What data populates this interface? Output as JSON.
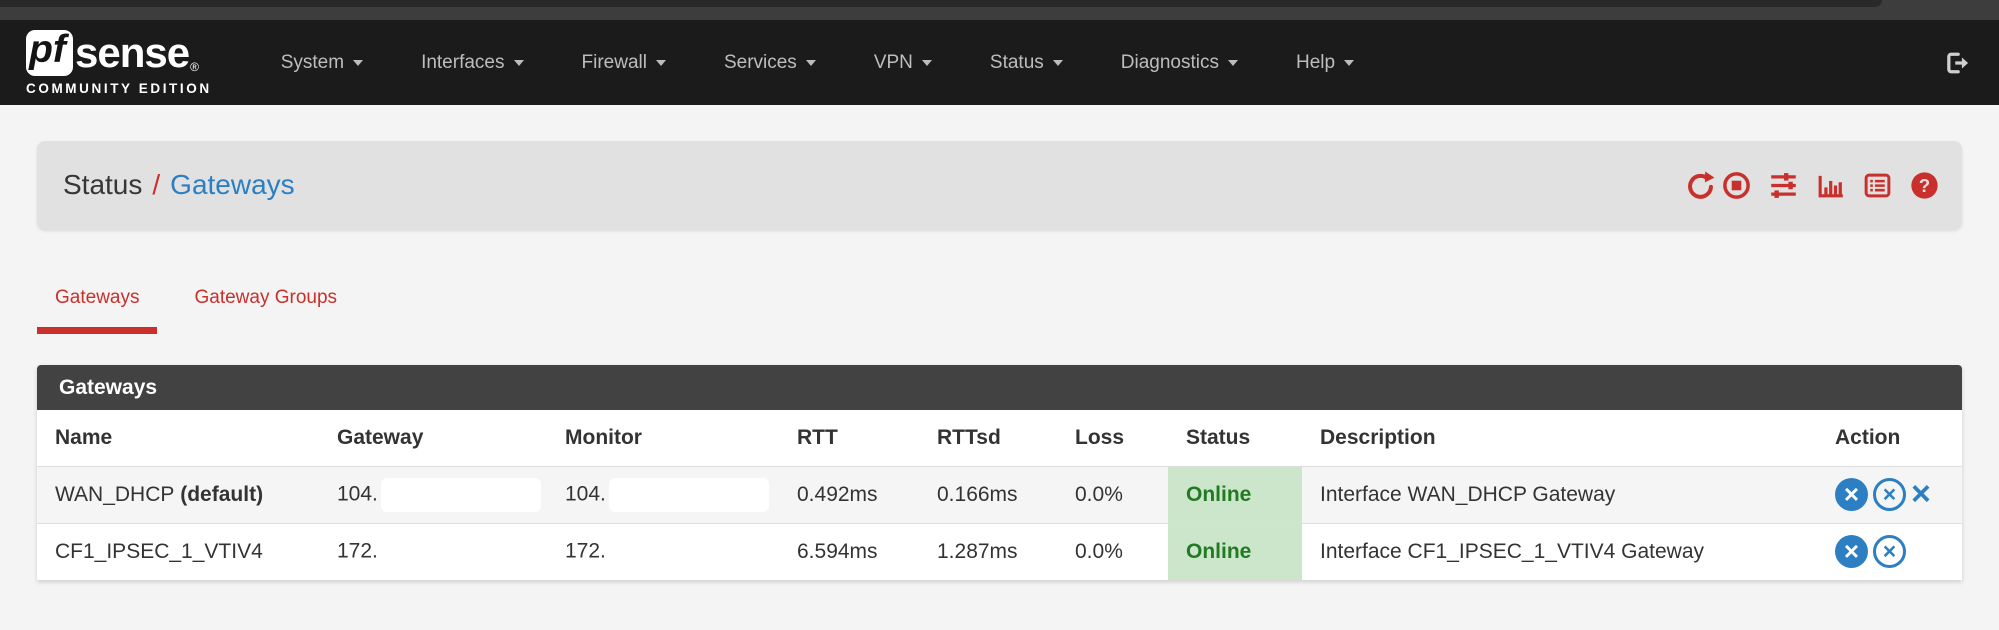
{
  "colors": {
    "red": "#c9302c",
    "blue": "#2b7fc2",
    "green_bg": "#cbe6cb",
    "green_text": "#237a23",
    "navbar_bg": "#1b1b1b",
    "panel_head_bg": "#424242"
  },
  "navbar": {
    "brand": {
      "pf": "pf",
      "sense": "sense",
      "registered": "®",
      "edition": "COMMUNITY EDITION"
    },
    "items": [
      {
        "label": "System"
      },
      {
        "label": "Interfaces"
      },
      {
        "label": "Firewall"
      },
      {
        "label": "Services"
      },
      {
        "label": "VPN"
      },
      {
        "label": "Status"
      },
      {
        "label": "Diagnostics"
      },
      {
        "label": "Help"
      }
    ],
    "logout_icon": "sign-out-icon"
  },
  "breadcrumb": {
    "section": "Status",
    "separator": "/",
    "page": "Gateways",
    "icons": [
      "refresh-icon",
      "stop-icon",
      "sliders-icon",
      "chart-bar-icon",
      "log-icon",
      "help-icon"
    ]
  },
  "tabs": [
    {
      "label": "Gateways",
      "active": true
    },
    {
      "label": "Gateway Groups",
      "active": false
    }
  ],
  "panel": {
    "title": "Gateways"
  },
  "table": {
    "columns": [
      "Name",
      "Gateway",
      "Monitor",
      "RTT",
      "RTTsd",
      "Loss",
      "Status",
      "Description",
      "Action"
    ],
    "rows": [
      {
        "name": "WAN_DHCP",
        "name_suffix": "(default)",
        "gateway": "104.",
        "gateway_redacted": true,
        "monitor": "104.",
        "monitor_redacted": true,
        "rtt": "0.492ms",
        "rttsd": "0.166ms",
        "loss": "0.0%",
        "status": "Online",
        "description": "Interface WAN_DHCP Gateway",
        "actions": [
          "times-circle-solid",
          "times-circle-outline",
          "times"
        ]
      },
      {
        "name": "CF1_IPSEC_1_VTIV4",
        "name_suffix": "",
        "gateway": "172.",
        "gateway_redacted": true,
        "monitor": "172.",
        "monitor_redacted": true,
        "rtt": "6.594ms",
        "rttsd": "1.287ms",
        "loss": "0.0%",
        "status": "Online",
        "description": "Interface CF1_IPSEC_1_VTIV4 Gateway",
        "actions": [
          "times-circle-solid",
          "times-circle-outline"
        ]
      }
    ]
  }
}
